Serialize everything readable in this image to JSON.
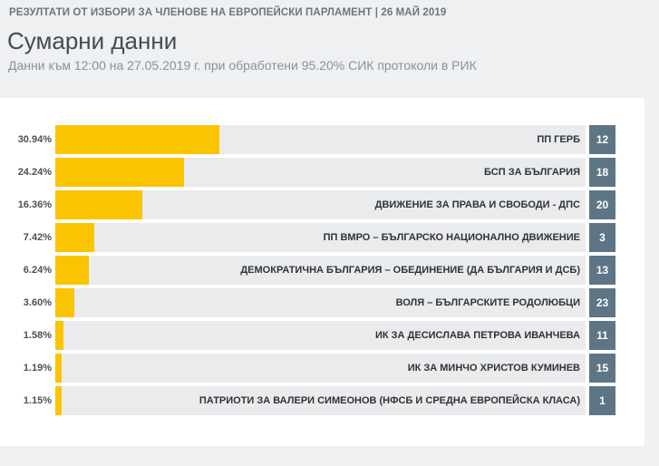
{
  "header": {
    "topbar": "РЕЗУЛТАТИ ОТ ИЗБОРИ ЗА ЧЛЕНОВЕ НА ЕВРОПЕЙСКИ ПАРЛАМЕНТ | 26 МАЙ 2019",
    "title": "Сумарни данни",
    "subtitle": "Данни към 12:00 на 27.05.2019 г. при обработени 95.20% СИК протоколи в РИК"
  },
  "colors": {
    "bar": "#fbc400",
    "track": "#e9ebed",
    "badge": "#5e7585"
  },
  "chart_data": {
    "type": "bar",
    "orientation": "horizontal",
    "title": "",
    "xlabel": "",
    "ylabel": "",
    "xlim": [
      0,
      100
    ],
    "grid": false,
    "categories": [
      "ПП ГЕРБ",
      "БСП ЗА БЪЛГАРИЯ",
      "ДВИЖЕНИЕ ЗА ПРАВА И СВОБОДИ - ДПС",
      "ПП ВМРО – БЪЛГАРСКО НАЦИОНАЛНО ДВИЖЕНИЕ",
      "ДЕМОКРАТИЧНА БЪЛГАРИЯ – ОБЕДИНЕНИЕ (ДА БЪЛГАРИЯ И ДСБ)",
      "ВОЛЯ – БЪЛГАРСКИТЕ РОДОЛЮБЦИ",
      "ИК ЗА ДЕСИСЛАВА ПЕТРОВА ИВАНЧЕВА",
      "ИК ЗА МИНЧО ХРИСТОВ КУМИНЕВ",
      "ПАТРИОТИ ЗА ВАЛЕРИ СИМЕОНОВ (НФСБ И СРЕДНА ЕВРОПЕЙСКА КЛАСА)"
    ],
    "values": [
      30.94,
      24.24,
      16.36,
      7.42,
      6.24,
      3.6,
      1.58,
      1.19,
      1.15
    ],
    "value_labels": [
      "30.94%",
      "24.24%",
      "16.36%",
      "7.42%",
      "6.24%",
      "3.60%",
      "1.58%",
      "1.19%",
      "1.15%"
    ],
    "ballot_numbers": [
      "12",
      "18",
      "20",
      "3",
      "13",
      "23",
      "11",
      "15",
      "1"
    ]
  }
}
